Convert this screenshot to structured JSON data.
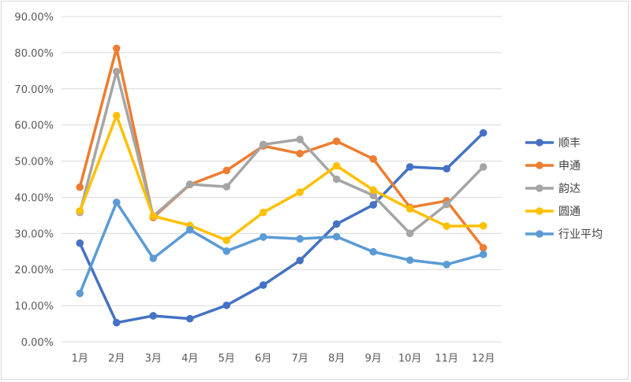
{
  "chart_data": {
    "type": "line",
    "title": "",
    "xlabel": "",
    "ylabel": "",
    "categories": [
      "1月",
      "2月",
      "3月",
      "4月",
      "5月",
      "6月",
      "7月",
      "8月",
      "9月",
      "10月",
      "11月",
      "12月"
    ],
    "ylim": [
      0,
      90
    ],
    "yticks": [
      0,
      10,
      20,
      30,
      40,
      50,
      60,
      70,
      80,
      90
    ],
    "ytick_labels": [
      "0.00%",
      "10.00%",
      "20.00%",
      "30.00%",
      "40.00%",
      "50.00%",
      "60.00%",
      "70.00%",
      "80.00%",
      "90.00%"
    ],
    "grid": true,
    "legend_position": "right",
    "series": [
      {
        "name": "顺丰",
        "color": "#4472C4",
        "values": [
          27.3,
          5.3,
          7.2,
          6.4,
          10.1,
          15.7,
          22.5,
          32.6,
          37.9,
          48.4,
          47.9,
          57.8
        ]
      },
      {
        "name": "申通",
        "color": "#ED7D31",
        "values": [
          42.8,
          81.2,
          34.4,
          43.5,
          47.4,
          54.2,
          52.1,
          55.5,
          50.6,
          37.2,
          39.0,
          26.0
        ]
      },
      {
        "name": "韵达",
        "color": "#A5A5A5",
        "values": [
          35.8,
          74.8,
          34.8,
          43.6,
          42.9,
          54.6,
          56.0,
          45.0,
          40.5,
          30.0,
          38.0,
          48.4
        ]
      },
      {
        "name": "圆通",
        "color": "#FFC000",
        "values": [
          36.2,
          62.6,
          34.8,
          32.2,
          28.1,
          35.8,
          41.4,
          48.7,
          42.0,
          36.8,
          32.0,
          32.1
        ]
      },
      {
        "name": "行业平均",
        "color": "#5B9BD5",
        "values": [
          13.4,
          38.6,
          23.1,
          31.0,
          25.1,
          29.0,
          28.5,
          29.1,
          24.9,
          22.6,
          21.4,
          24.2
        ]
      }
    ]
  }
}
